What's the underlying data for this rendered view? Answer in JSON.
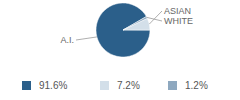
{
  "chart_data": {
    "type": "pie",
    "categories": [
      "A.I.",
      "ASIAN",
      "WHITE"
    ],
    "values": [
      91.6,
      7.2,
      1.2
    ],
    "value_labels": [
      "91.6%",
      "7.2%",
      "1.2%"
    ],
    "colors": [
      "#2b5f8a",
      "#d3dfe9",
      "#8ea8bf"
    ]
  }
}
